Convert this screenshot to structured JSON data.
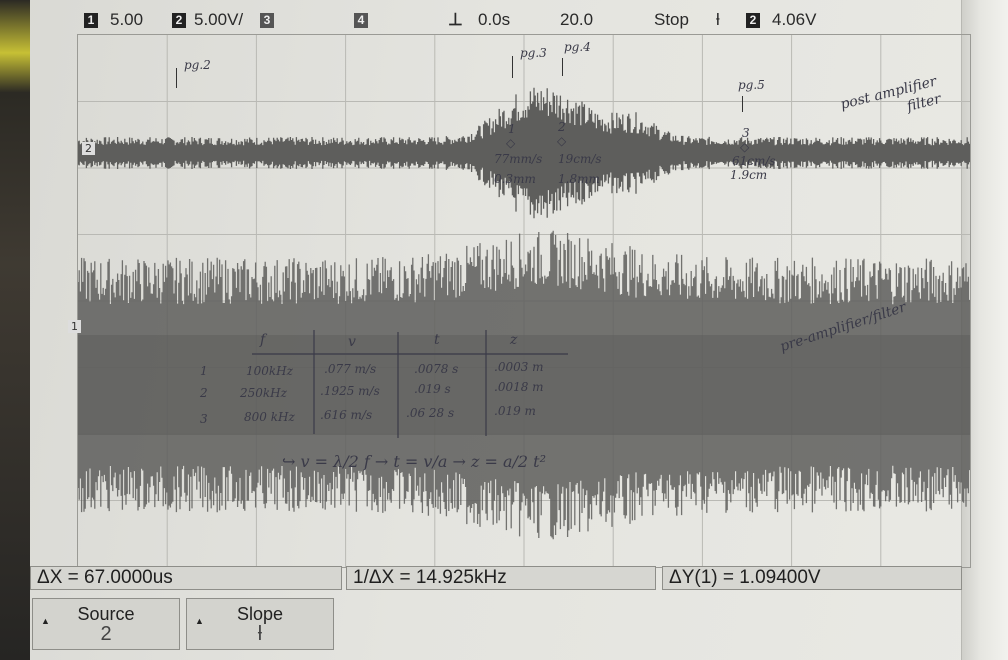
{
  "status": {
    "ch1_num": "1",
    "ch1_scale": "5.00",
    "ch2_num": "2",
    "ch2_scale": "5.00V/",
    "ch3_num": "3",
    "ch4_num": "4",
    "delay": "0.0s",
    "timebase": "20.0",
    "run_state": "Stop",
    "trig_ch": "2",
    "trig_level": "4.06V"
  },
  "annotations": {
    "pg2": "pg.2",
    "pg3": "pg.3",
    "pg4": "pg.4",
    "pg5": "pg.5",
    "post_label": "post amplifier filter",
    "pre_label": "pre-amplifier/filter",
    "m1_num": "1",
    "m1_speed": "77mm/s",
    "m1_depth": "0.3mm",
    "m2_num": "2",
    "m2_speed": "19cm/s",
    "m2_depth": "1.8mm",
    "m3_num": "3",
    "m3_speed": "61cm/s",
    "m3_depth": "1.9cm"
  },
  "table": {
    "headers": [
      "f",
      "v",
      "t",
      "z"
    ],
    "rows": [
      {
        "n": "1",
        "f": "100kHz",
        "v": ".077 m/s",
        "t": ".0078 s",
        "z": ".0003 m"
      },
      {
        "n": "2",
        "f": "250kHz",
        "v": ".1925 m/s",
        "t": ".019 s",
        "z": ".0018 m"
      },
      {
        "n": "3",
        "f": "800 kHz",
        "v": ".616 m/s",
        "t": ".06 28 s",
        "z": ".019 m"
      }
    ],
    "formula": "↪ v = λ/2 f → t = v/a → z = a/2 t²"
  },
  "measurements": {
    "dx": "ΔX = 67.0000us",
    "inv_dx": "1/ΔX = 14.925kHz",
    "dy": "ΔY(1) = 1.09400V"
  },
  "softkeys": {
    "source_label": "Source",
    "source_value": "2",
    "slope_label": "Slope",
    "slope_value": "ƚ"
  },
  "marker_labels": {
    "ch1": "1",
    "ch2": "2"
  },
  "colors": {
    "trace": "#5e5e5c",
    "paper": "#e4e4df",
    "ink": "#3a3a48"
  }
}
